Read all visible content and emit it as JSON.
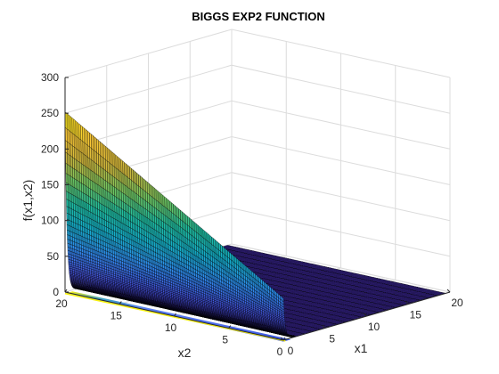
{
  "chart_data": {
    "type": "surface",
    "title": "BIGGS EXP2 FUNCTION",
    "xlabel": "x1",
    "ylabel": "x2",
    "zlabel": "f(x1,x2)",
    "x_range": [
      0,
      20
    ],
    "y_range": [
      0,
      20
    ],
    "zlim": [
      0,
      300
    ],
    "x_ticks": [
      "0",
      "5",
      "10",
      "15",
      "20"
    ],
    "y_ticks": [
      "0",
      "5",
      "10",
      "15",
      "20"
    ],
    "z_ticks": [
      "0",
      "50",
      "100",
      "150",
      "200",
      "250",
      "300"
    ],
    "grid": true,
    "colormap": "parula",
    "contour_base": true,
    "peak_value": 252,
    "edge_color": "#000000",
    "axis_color": "#262626",
    "grid_color": "#dcdcdc"
  }
}
